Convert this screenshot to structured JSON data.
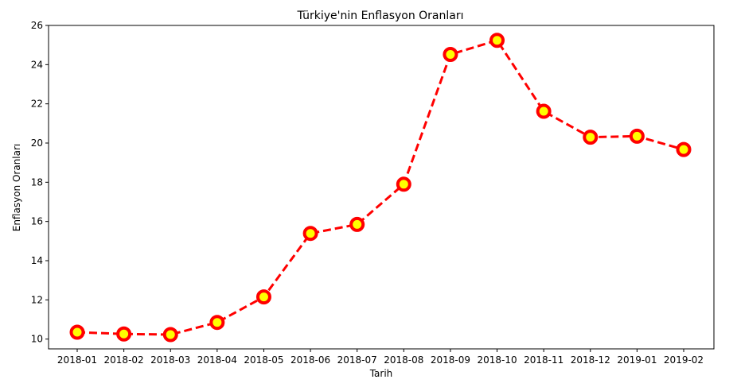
{
  "chart_data": {
    "type": "line",
    "title": "Türkiye'nin Enflasyon Oranları",
    "xlabel": "Tarih",
    "ylabel": "Enflasyon Oranları",
    "categories": [
      "2018-01",
      "2018-02",
      "2018-03",
      "2018-04",
      "2018-05",
      "2018-06",
      "2018-07",
      "2018-08",
      "2018-09",
      "2018-10",
      "2018-11",
      "2018-12",
      "2019-01",
      "2019-02"
    ],
    "series": [
      {
        "values": [
          10.35,
          10.26,
          10.23,
          10.85,
          12.15,
          15.39,
          15.85,
          17.9,
          24.52,
          25.24,
          21.62,
          20.3,
          20.35,
          19.67
        ]
      }
    ],
    "ylim": [
      9.5,
      26
    ],
    "yticks": [
      10,
      12,
      14,
      16,
      18,
      20,
      22,
      24,
      26
    ],
    "grid": false,
    "line_color": "#ff0000",
    "line_style": "dashed",
    "marker_edge_color": "#ff0000",
    "marker_face_color": "#ffff00"
  }
}
